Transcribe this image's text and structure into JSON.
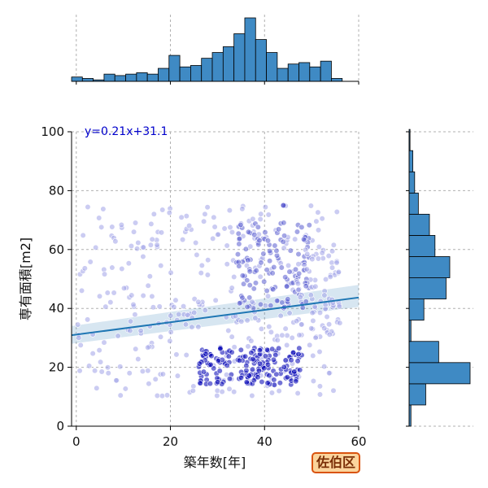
{
  "chart_data": {
    "type": "scatter",
    "xlabel": "築年数[年]",
    "ylabel": "専有面積[m2]",
    "xlim": [
      -1,
      60
    ],
    "ylim": [
      0,
      100
    ],
    "x_ticks": [
      0,
      20,
      40,
      60
    ],
    "y_ticks": [
      0,
      20,
      40,
      60,
      80,
      100
    ],
    "grid": true,
    "regression": {
      "label": "y=0.21x+31.1",
      "slope": 0.21,
      "intercept": 31.1,
      "ci_start": [
        -1,
        28.0,
        34.0
      ],
      "ci_end": [
        60,
        40.5,
        48.0
      ]
    },
    "top_histogram": {
      "bins_start": -1,
      "bin_width": 2.3,
      "counts": [
        3,
        2,
        1,
        5,
        4,
        5,
        6,
        5,
        9,
        18,
        10,
        11,
        16,
        20,
        24,
        33,
        44,
        29,
        20,
        9,
        12,
        13,
        10,
        14,
        2,
        0
      ]
    },
    "right_histogram": {
      "bins_start": 0,
      "bin_width": 7.2,
      "counts": [
        1,
        9,
        33,
        16,
        1,
        8,
        20,
        22,
        14,
        11,
        5,
        3,
        2,
        0.5
      ]
    },
    "series": [
      {
        "color_dark": "#0000b4",
        "color_light": "#a0a2e8"
      }
    ]
  },
  "badge": {
    "label": "佐伯区"
  }
}
